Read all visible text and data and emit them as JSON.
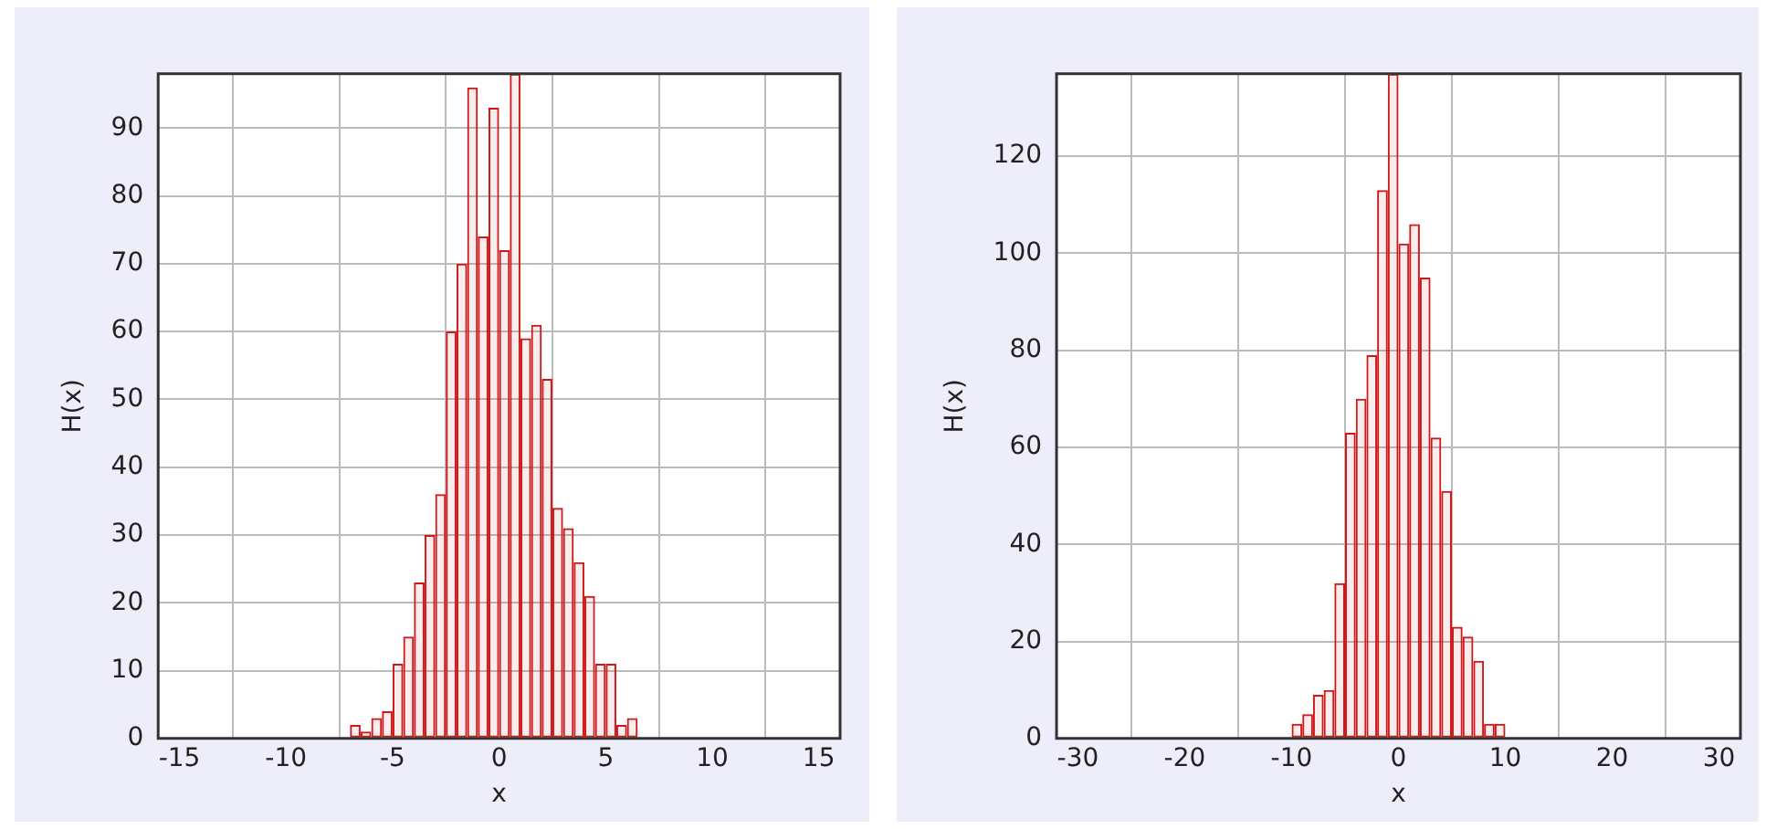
{
  "chart_data": [
    {
      "type": "histogram",
      "xlabel": "x",
      "ylabel": "H(x)",
      "color": "#d01818",
      "bins": [
        -7,
        -6.5,
        -6,
        -5.5,
        -5,
        -4.5,
        -4,
        -3.5,
        -3,
        -2.5,
        -2,
        -1.5,
        -1,
        -0.5,
        0,
        0.5,
        1,
        1.5,
        2,
        2.5,
        3,
        3.5,
        4,
        4.5,
        5,
        5.5,
        6,
        6.5
      ],
      "values": [
        2,
        1,
        3,
        4,
        11,
        15,
        23,
        30,
        36,
        60,
        70,
        96,
        74,
        93,
        72,
        98,
        59,
        61,
        53,
        34,
        31,
        26,
        21,
        11,
        11,
        2,
        3
      ],
      "xlim": [
        -16,
        16
      ],
      "ylim": [
        0,
        98
      ],
      "xticks": [
        -15,
        -10,
        -5,
        0,
        5,
        10,
        15
      ],
      "yticks": [
        0,
        10,
        20,
        30,
        40,
        50,
        60,
        70,
        80,
        90
      ],
      "grid": true,
      "legend": false
    },
    {
      "type": "histogram",
      "xlabel": "x",
      "ylabel": "H(x)",
      "color": "#d01818",
      "bins": [
        -10,
        -9,
        -8,
        -7,
        -6,
        -5,
        -4,
        -3,
        -2,
        -1,
        0,
        1,
        2,
        3,
        4,
        5,
        6,
        7,
        8,
        9,
        10
      ],
      "values": [
        3,
        5,
        9,
        10,
        32,
        63,
        70,
        79,
        113,
        137,
        102,
        106,
        95,
        62,
        51,
        23,
        21,
        16,
        3,
        3
      ],
      "xlim": [
        -32,
        32
      ],
      "ylim": [
        0,
        137
      ],
      "xticks": [
        -30,
        -20,
        -10,
        0,
        10,
        20,
        30
      ],
      "yticks": [
        0,
        20,
        40,
        60,
        80,
        100,
        120
      ],
      "grid": true,
      "legend": false
    }
  ]
}
